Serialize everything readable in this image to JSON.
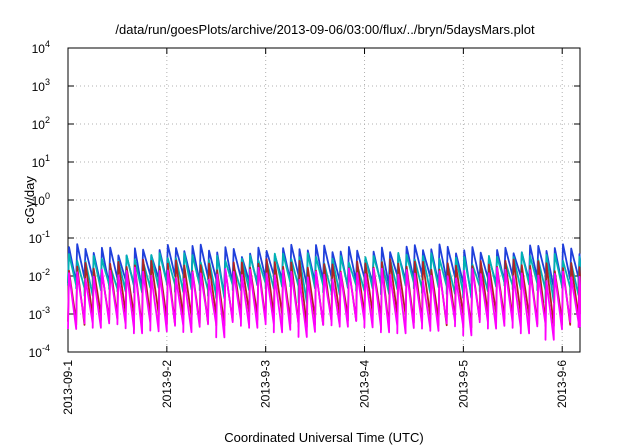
{
  "chart_data": {
    "type": "line",
    "title": "/data/run/goesPlots/archive/2013-09-06/03:00/flux/../bryn/5daysMars.plot",
    "xlabel": "Coordinated Universal Time (UTC)",
    "ylabel": "cGy/day",
    "x_ticks": [
      "2013-09-1",
      "2013-9-2",
      "2013-9-3",
      "2013-9-4",
      "2013-9-5",
      "2013-9-6"
    ],
    "x_range_days": [
      0,
      5.18
    ],
    "y_scale": "log",
    "ylim": [
      0.0001,
      10000
    ],
    "y_ticks": [
      {
        "base": "10",
        "exp": "-4"
      },
      {
        "base": "10",
        "exp": "-3"
      },
      {
        "base": "10",
        "exp": "-2"
      },
      {
        "base": "10",
        "exp": "-1"
      },
      {
        "base": "10",
        "exp": "0"
      },
      {
        "base": "10",
        "exp": "1"
      },
      {
        "base": "10",
        "exp": "2"
      },
      {
        "base": "10",
        "exp": "3"
      },
      {
        "base": "10",
        "exp": "4"
      }
    ],
    "grid": true,
    "sawtooth_period_days": 0.0833,
    "series": [
      {
        "color": "#1f3fdc",
        "peak": 0.05,
        "trough": 0.008
      },
      {
        "color": "#00b3b3",
        "peak": 0.03,
        "trough": 0.005
      },
      {
        "color": "#b22222",
        "peak": 0.02,
        "trough": 0.0008
      },
      {
        "color": "#ff00ff",
        "peak": 0.012,
        "trough": 0.0005
      }
    ]
  }
}
